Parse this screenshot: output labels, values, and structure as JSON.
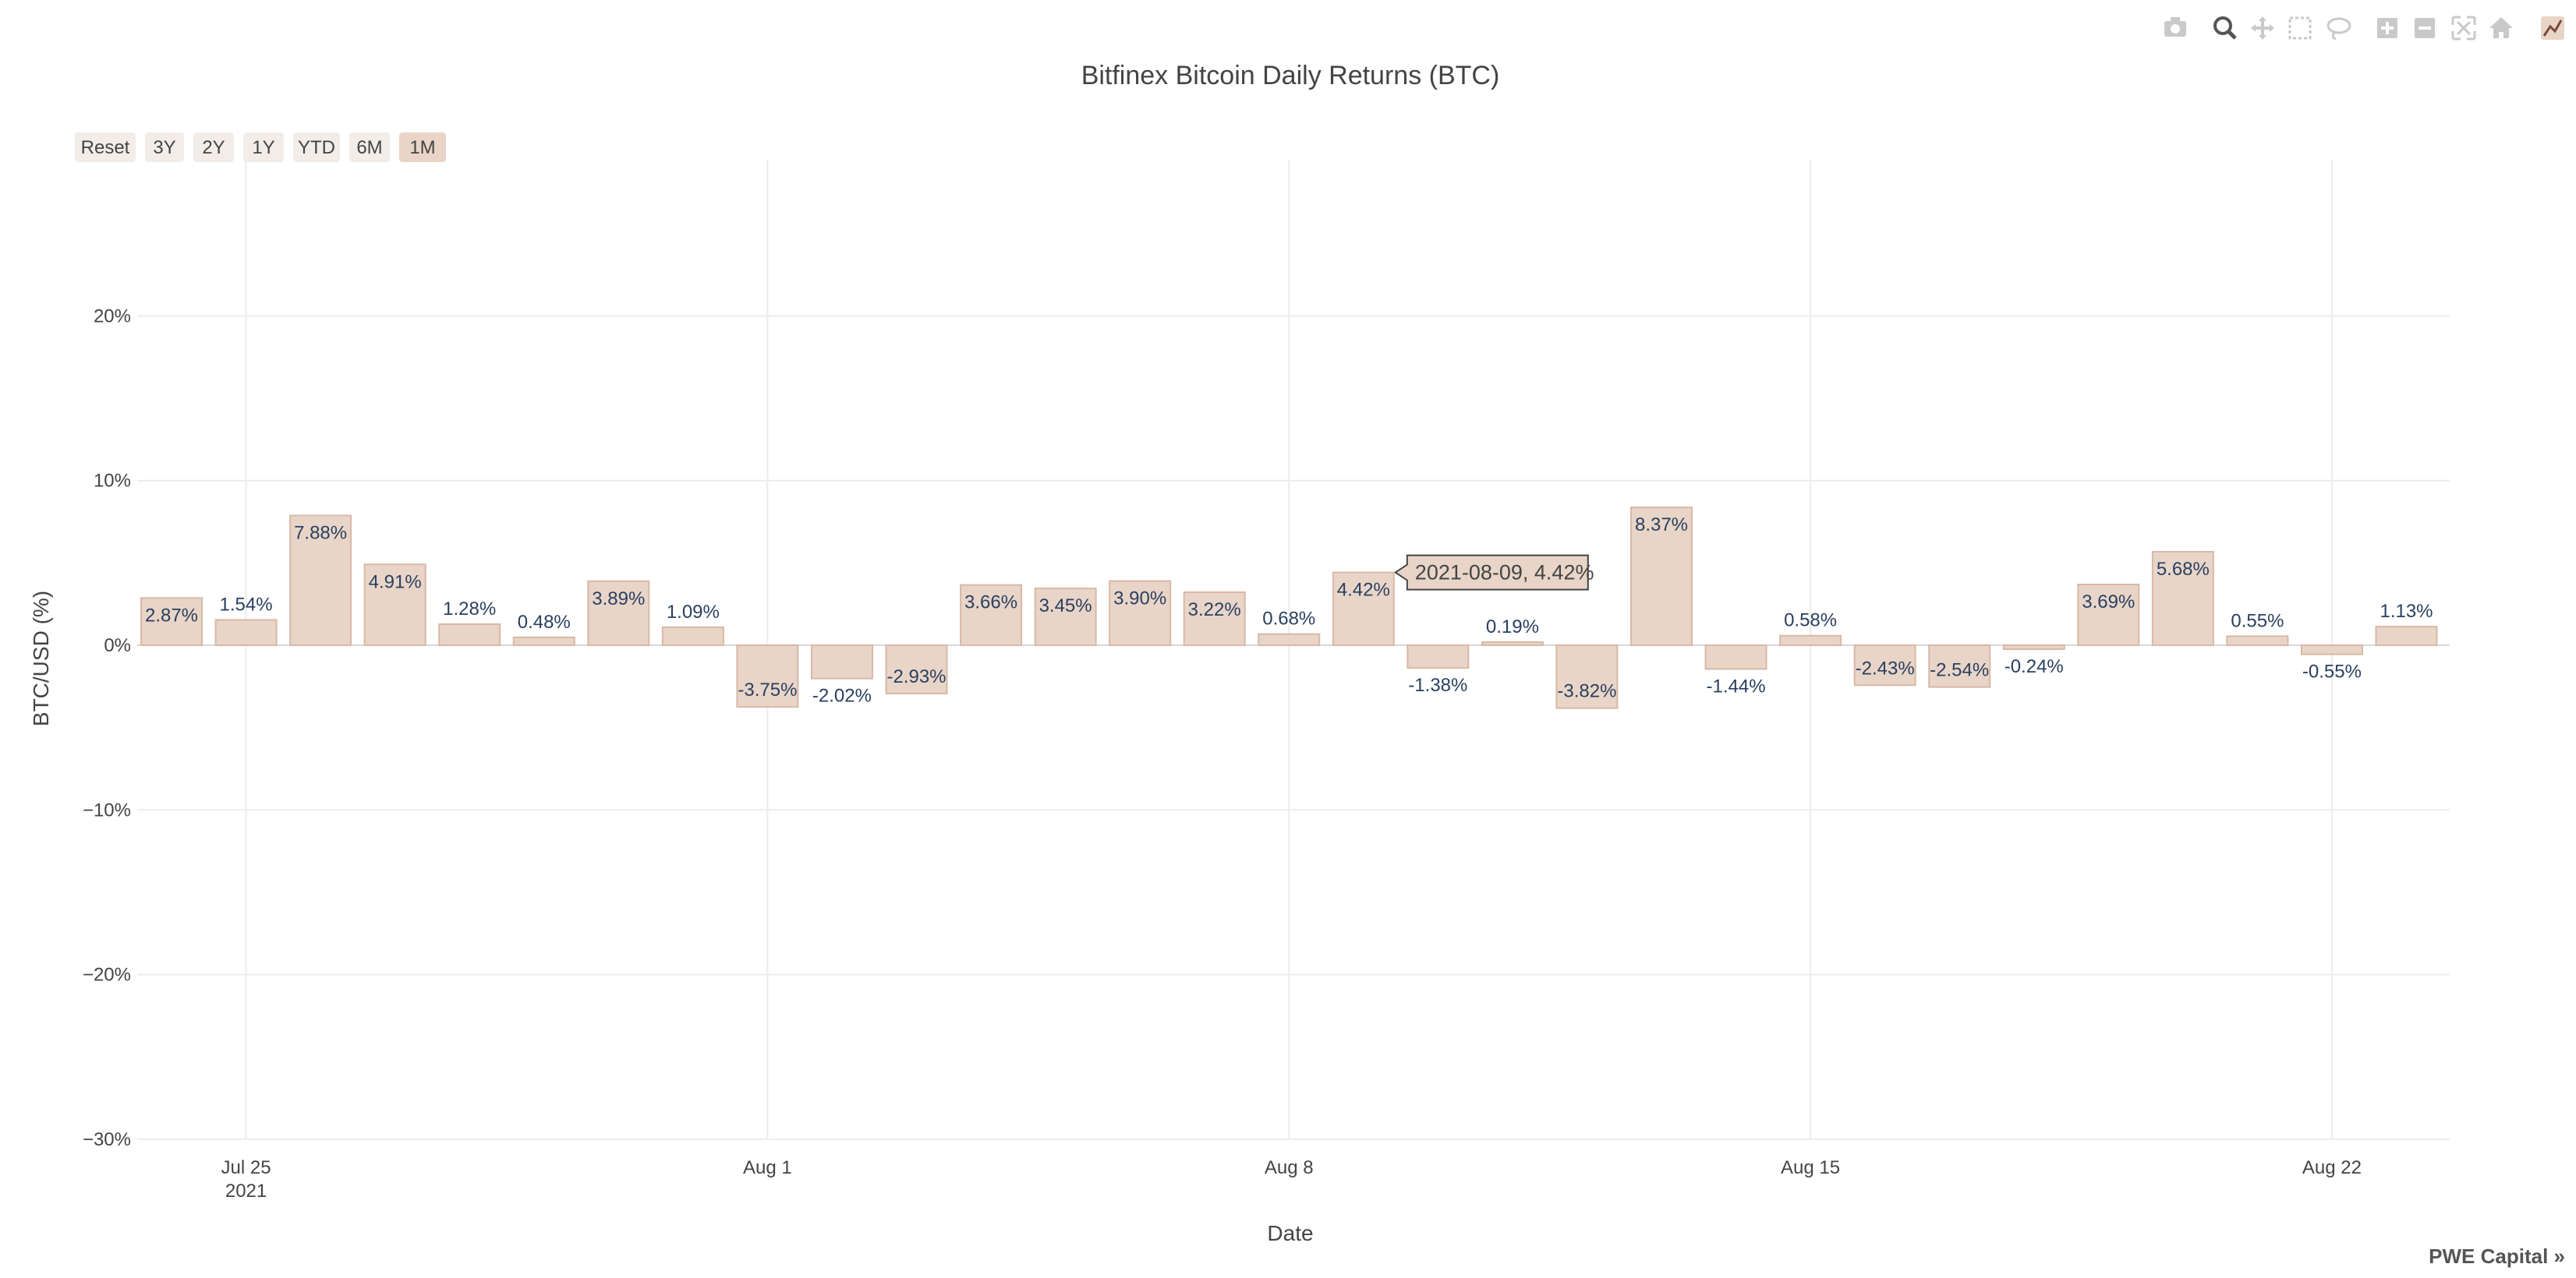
{
  "chart_data": {
    "type": "bar",
    "title": "Bitfinex Bitcoin Daily Returns (BTC)",
    "xlabel": "Date",
    "ylabel": "BTC/USD (%)",
    "ylim": [
      -30,
      30
    ],
    "yticks": [
      20,
      10,
      0,
      -10,
      -20,
      -30
    ],
    "ytick_labels": [
      "20%",
      "10%",
      "0%",
      "−10%",
      "−20%",
      "−30%"
    ],
    "xticks": [
      {
        "date": "2021-07-25",
        "label": "Jul 25",
        "sublabel": "2021"
      },
      {
        "date": "2021-08-01",
        "label": "Aug 1",
        "sublabel": ""
      },
      {
        "date": "2021-08-08",
        "label": "Aug 8",
        "sublabel": ""
      },
      {
        "date": "2021-08-15",
        "label": "Aug 15",
        "sublabel": ""
      },
      {
        "date": "2021-08-22",
        "label": "Aug 22",
        "sublabel": ""
      }
    ],
    "x": [
      "2021-07-24",
      "2021-07-25",
      "2021-07-26",
      "2021-07-27",
      "2021-07-28",
      "2021-07-29",
      "2021-07-30",
      "2021-07-31",
      "2021-08-01",
      "2021-08-02",
      "2021-08-03",
      "2021-08-04",
      "2021-08-05",
      "2021-08-06",
      "2021-08-07",
      "2021-08-08",
      "2021-08-09",
      "2021-08-10",
      "2021-08-11",
      "2021-08-12",
      "2021-08-13",
      "2021-08-14",
      "2021-08-15",
      "2021-08-16",
      "2021-08-17",
      "2021-08-18",
      "2021-08-19",
      "2021-08-20",
      "2021-08-21",
      "2021-08-22",
      "2021-08-23"
    ],
    "values": [
      2.87,
      1.54,
      7.88,
      4.91,
      1.28,
      0.48,
      3.89,
      1.09,
      -3.75,
      -2.02,
      -2.93,
      3.66,
      3.45,
      3.9,
      3.22,
      0.68,
      4.42,
      -1.38,
      0.19,
      -3.82,
      8.37,
      -1.44,
      0.58,
      -2.43,
      -2.54,
      -0.24,
      3.69,
      5.68,
      0.55,
      -0.55,
      1.13
    ],
    "labels": [
      "2.87%",
      "1.54%",
      "7.88%",
      "4.91%",
      "1.28%",
      "0.48%",
      "3.89%",
      "1.09%",
      "-3.75%",
      "-2.02%",
      "-2.93%",
      "3.66%",
      "3.45%",
      "3.90%",
      "3.22%",
      "0.68%",
      "4.42%",
      "-1.38%",
      "0.19%",
      "-3.82%",
      "8.37%",
      "-1.44%",
      "0.58%",
      "-2.43%",
      "-2.54%",
      "-0.24%",
      "3.69%",
      "5.68%",
      "0.55%",
      "-0.55%",
      "1.13%"
    ],
    "bar_color": "#e8d5c8",
    "bar_outline": "#d9b8a6",
    "grid": true,
    "hover": {
      "text": "2021-08-09, 4.42%",
      "index": 16
    }
  },
  "range_selector": {
    "buttons": [
      "Reset",
      "3Y",
      "2Y",
      "1Y",
      "YTD",
      "6M",
      "1M"
    ],
    "active": "1M"
  },
  "modebar": {
    "icons": [
      "camera-icon",
      "zoom-icon",
      "pan-icon",
      "box-select-icon",
      "lasso-icon",
      "zoom-in-icon",
      "zoom-out-icon",
      "autoscale-icon",
      "home-icon",
      "plotly-logo-icon"
    ]
  },
  "brand": "PWE Capital »"
}
